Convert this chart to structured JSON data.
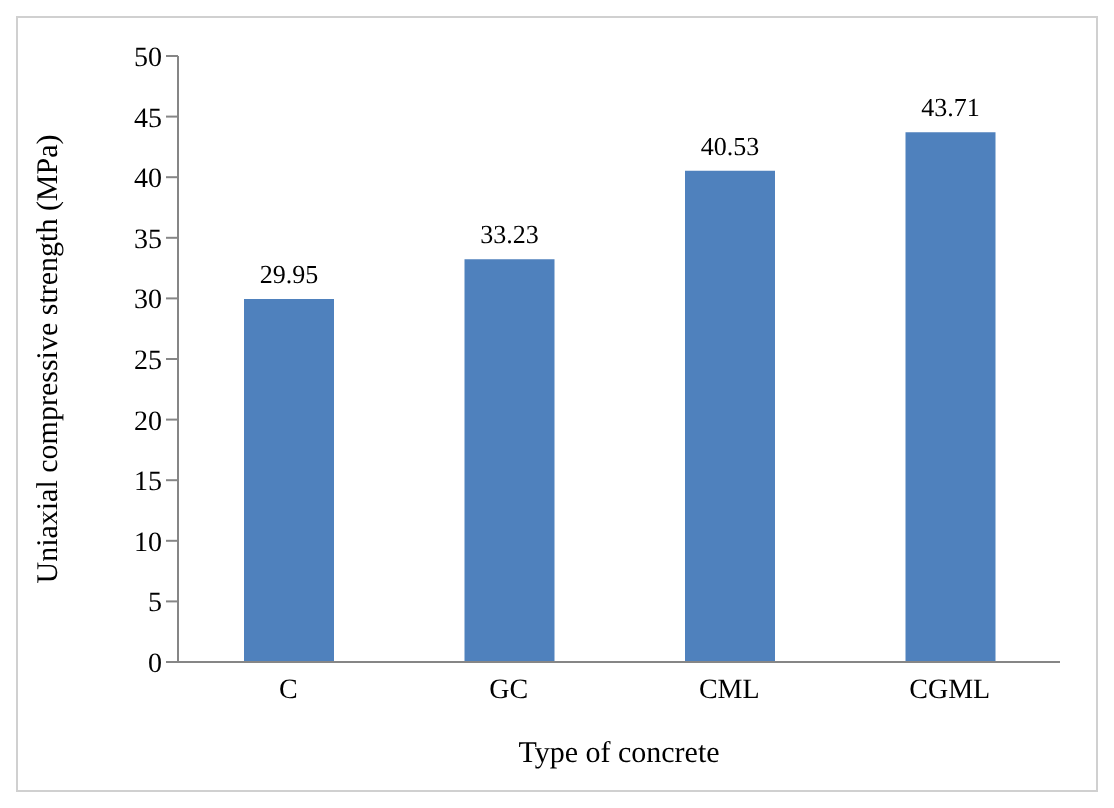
{
  "chart_data": {
    "type": "bar",
    "xlabel": "Type of concrete",
    "ylabel": "Uniaxial  compressive strength (MPa)",
    "categories": [
      "C",
      "GC",
      "CML",
      "CGML"
    ],
    "values": [
      29.95,
      33.23,
      40.53,
      43.71
    ],
    "color": "#4f81bd",
    "ylim": [
      0,
      50
    ],
    "yticks": [
      0,
      5,
      10,
      15,
      20,
      25,
      30,
      35,
      40,
      45,
      50
    ],
    "grid": false,
    "data_labels": true
  }
}
